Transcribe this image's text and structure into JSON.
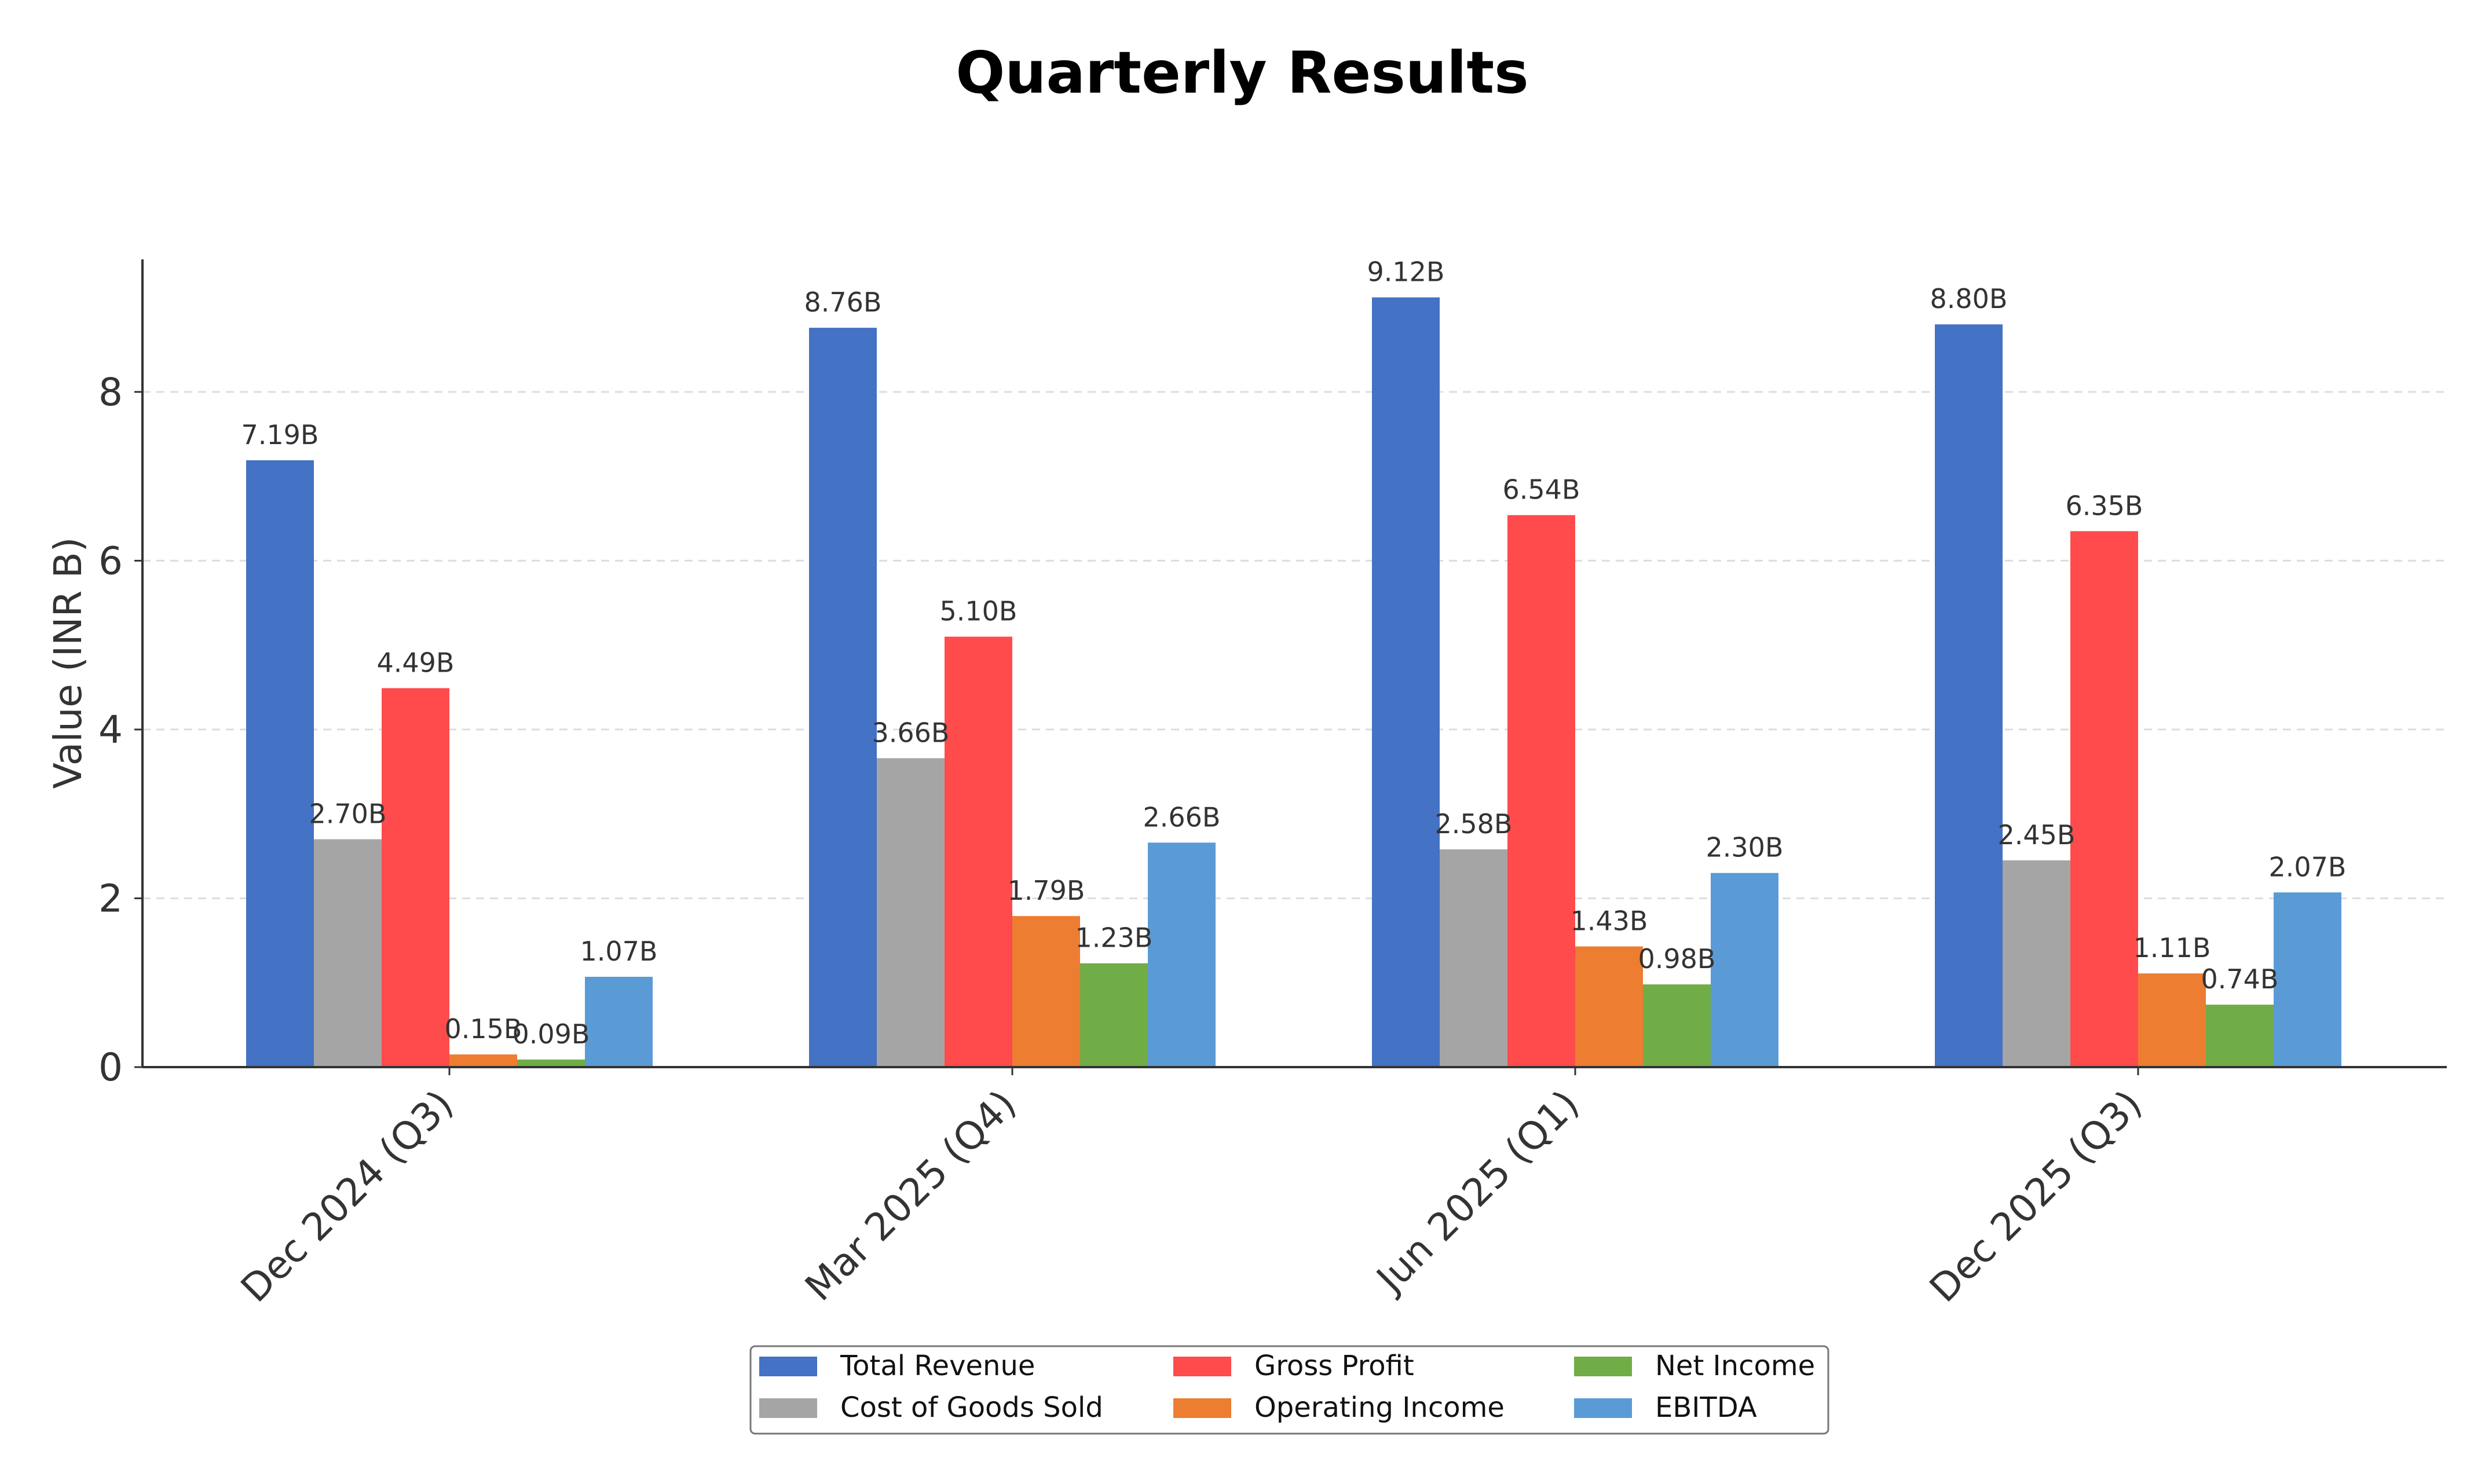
{
  "chart_data": {
    "type": "bar",
    "title": "Quarterly Results",
    "ylabel": "Value (INR B)",
    "xlabel": "",
    "ylim": [
      0,
      9.57
    ],
    "yticks": [
      0,
      2,
      4,
      6,
      8
    ],
    "grid": "y-dashed",
    "legend_position": "bottom-center",
    "categories": [
      "Dec 2024 (Q3)",
      "Mar 2025 (Q4)",
      "Jun 2025 (Q1)",
      "Dec 2025 (Q3)"
    ],
    "series": [
      {
        "name": "Total Revenue",
        "color": "#4472C4",
        "values": [
          7.19,
          8.76,
          9.12,
          8.8
        ],
        "labels": [
          "7.19B",
          "8.76B",
          "9.12B",
          "8.80B"
        ]
      },
      {
        "name": "Cost of Goods Sold",
        "color": "#A5A5A5",
        "values": [
          2.7,
          3.66,
          2.58,
          2.45
        ],
        "labels": [
          "2.70B",
          "3.66B",
          "2.58B",
          "2.45B"
        ]
      },
      {
        "name": "Gross Profit",
        "color": "#FF4B4B",
        "values": [
          4.49,
          5.1,
          6.54,
          6.35
        ],
        "labels": [
          "4.49B",
          "5.10B",
          "6.54B",
          "6.35B"
        ]
      },
      {
        "name": "Operating Income",
        "color": "#ED7D31",
        "values": [
          0.15,
          1.79,
          1.43,
          1.11
        ],
        "labels": [
          "0.15B",
          "1.79B",
          "1.43B",
          "1.11B"
        ]
      },
      {
        "name": "Net Income",
        "color": "#70AD47",
        "values": [
          0.09,
          1.23,
          0.98,
          0.74
        ],
        "labels": [
          "0.09B",
          "1.23B",
          "0.98B",
          "0.74B"
        ]
      },
      {
        "name": "EBITDA",
        "color": "#5B9BD5",
        "values": [
          1.07,
          2.66,
          2.3,
          2.07
        ],
        "labels": [
          "1.07B",
          "2.66B",
          "2.30B",
          "2.07B"
        ]
      }
    ]
  }
}
